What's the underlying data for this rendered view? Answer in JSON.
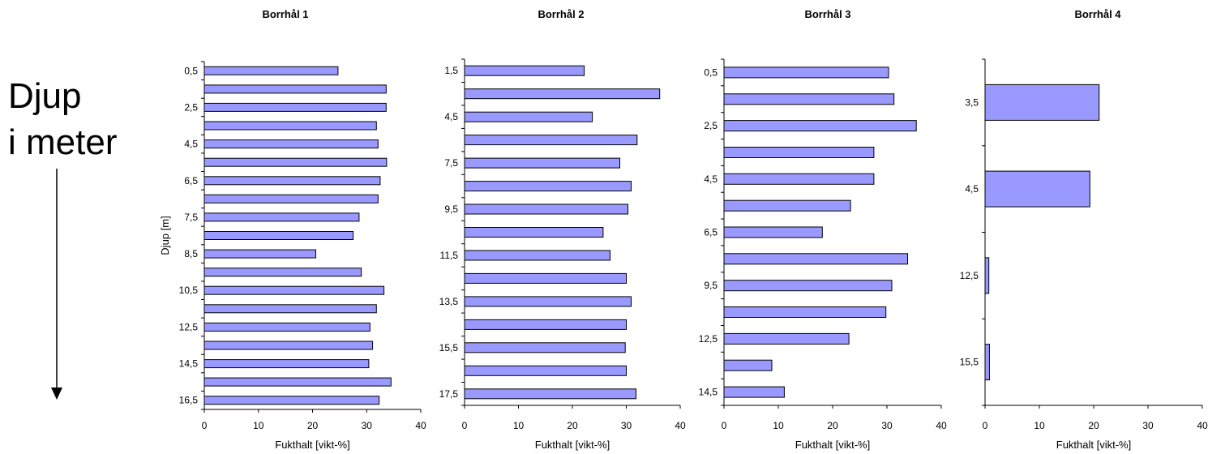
{
  "side_label": {
    "line1": "Djup",
    "line2": "i meter"
  },
  "styles": {
    "bar_fill": "#9999ff",
    "bar_stroke": "#000000"
  },
  "chart_data": [
    {
      "type": "bar",
      "orientation": "horizontal",
      "title": "Borrhål 1",
      "xlabel": "Fukthalt [vikt-%]",
      "ylabel": "Djup [m]",
      "xlim": [
        0,
        40
      ],
      "xticks": [
        "0",
        "10",
        "20",
        "30",
        "40"
      ],
      "categories": [
        "0,5",
        "",
        "2,5",
        "",
        "4,5",
        "",
        "6,5",
        "",
        "7,5",
        "",
        "8,5",
        "",
        "10,5",
        "",
        "12,5",
        "",
        "14,5",
        "",
        "16,5"
      ],
      "values": [
        24.7,
        33.6,
        33.6,
        31.8,
        32.1,
        33.7,
        32.5,
        32.1,
        28.6,
        27.5,
        20.6,
        29.0,
        33.2,
        31.8,
        30.6,
        31.1,
        30.4,
        34.5,
        32.3
      ]
    },
    {
      "type": "bar",
      "orientation": "horizontal",
      "title": "Borrhål 2",
      "xlabel": "Fukthalt [vikt-%]",
      "ylabel": "",
      "xlim": [
        0,
        40
      ],
      "xticks": [
        "0",
        "10",
        "20",
        "30",
        "40"
      ],
      "categories": [
        "1,5",
        "",
        "4,5",
        "",
        "7,5",
        "",
        "9,5",
        "",
        "11,5",
        "",
        "13,5",
        "",
        "15,5",
        "",
        "17,5"
      ],
      "values": [
        22.2,
        36.2,
        23.7,
        32.0,
        28.8,
        30.9,
        30.3,
        25.7,
        27.0,
        30.0,
        30.9,
        30.0,
        29.8,
        30.0,
        31.8
      ]
    },
    {
      "type": "bar",
      "orientation": "horizontal",
      "title": "Borrhål 3",
      "xlabel": "Fukthalt [vikt-%]",
      "ylabel": "",
      "xlim": [
        0,
        40
      ],
      "xticks": [
        "0",
        "10",
        "20",
        "30",
        "40"
      ],
      "categories": [
        "0,5",
        "",
        "2,5",
        "",
        "4,5",
        "",
        "6,5",
        "",
        "9,5",
        "",
        "12,5",
        "",
        "14,5"
      ],
      "values": [
        30.3,
        31.3,
        35.4,
        27.6,
        27.6,
        23.3,
        18.1,
        33.8,
        30.9,
        29.8,
        23.0,
        8.8,
        11.1
      ]
    },
    {
      "type": "bar",
      "orientation": "horizontal",
      "title": "Borrhål 4",
      "xlabel": "Fukthalt [vikt-%]",
      "ylabel": "",
      "xlim": [
        0,
        40
      ],
      "xticks": [
        "0",
        "10",
        "20",
        "30",
        "40"
      ],
      "categories": [
        "3,5",
        "4,5",
        "12,5",
        "15,5"
      ],
      "values": [
        21.0,
        19.3,
        0.7,
        0.8
      ]
    }
  ]
}
